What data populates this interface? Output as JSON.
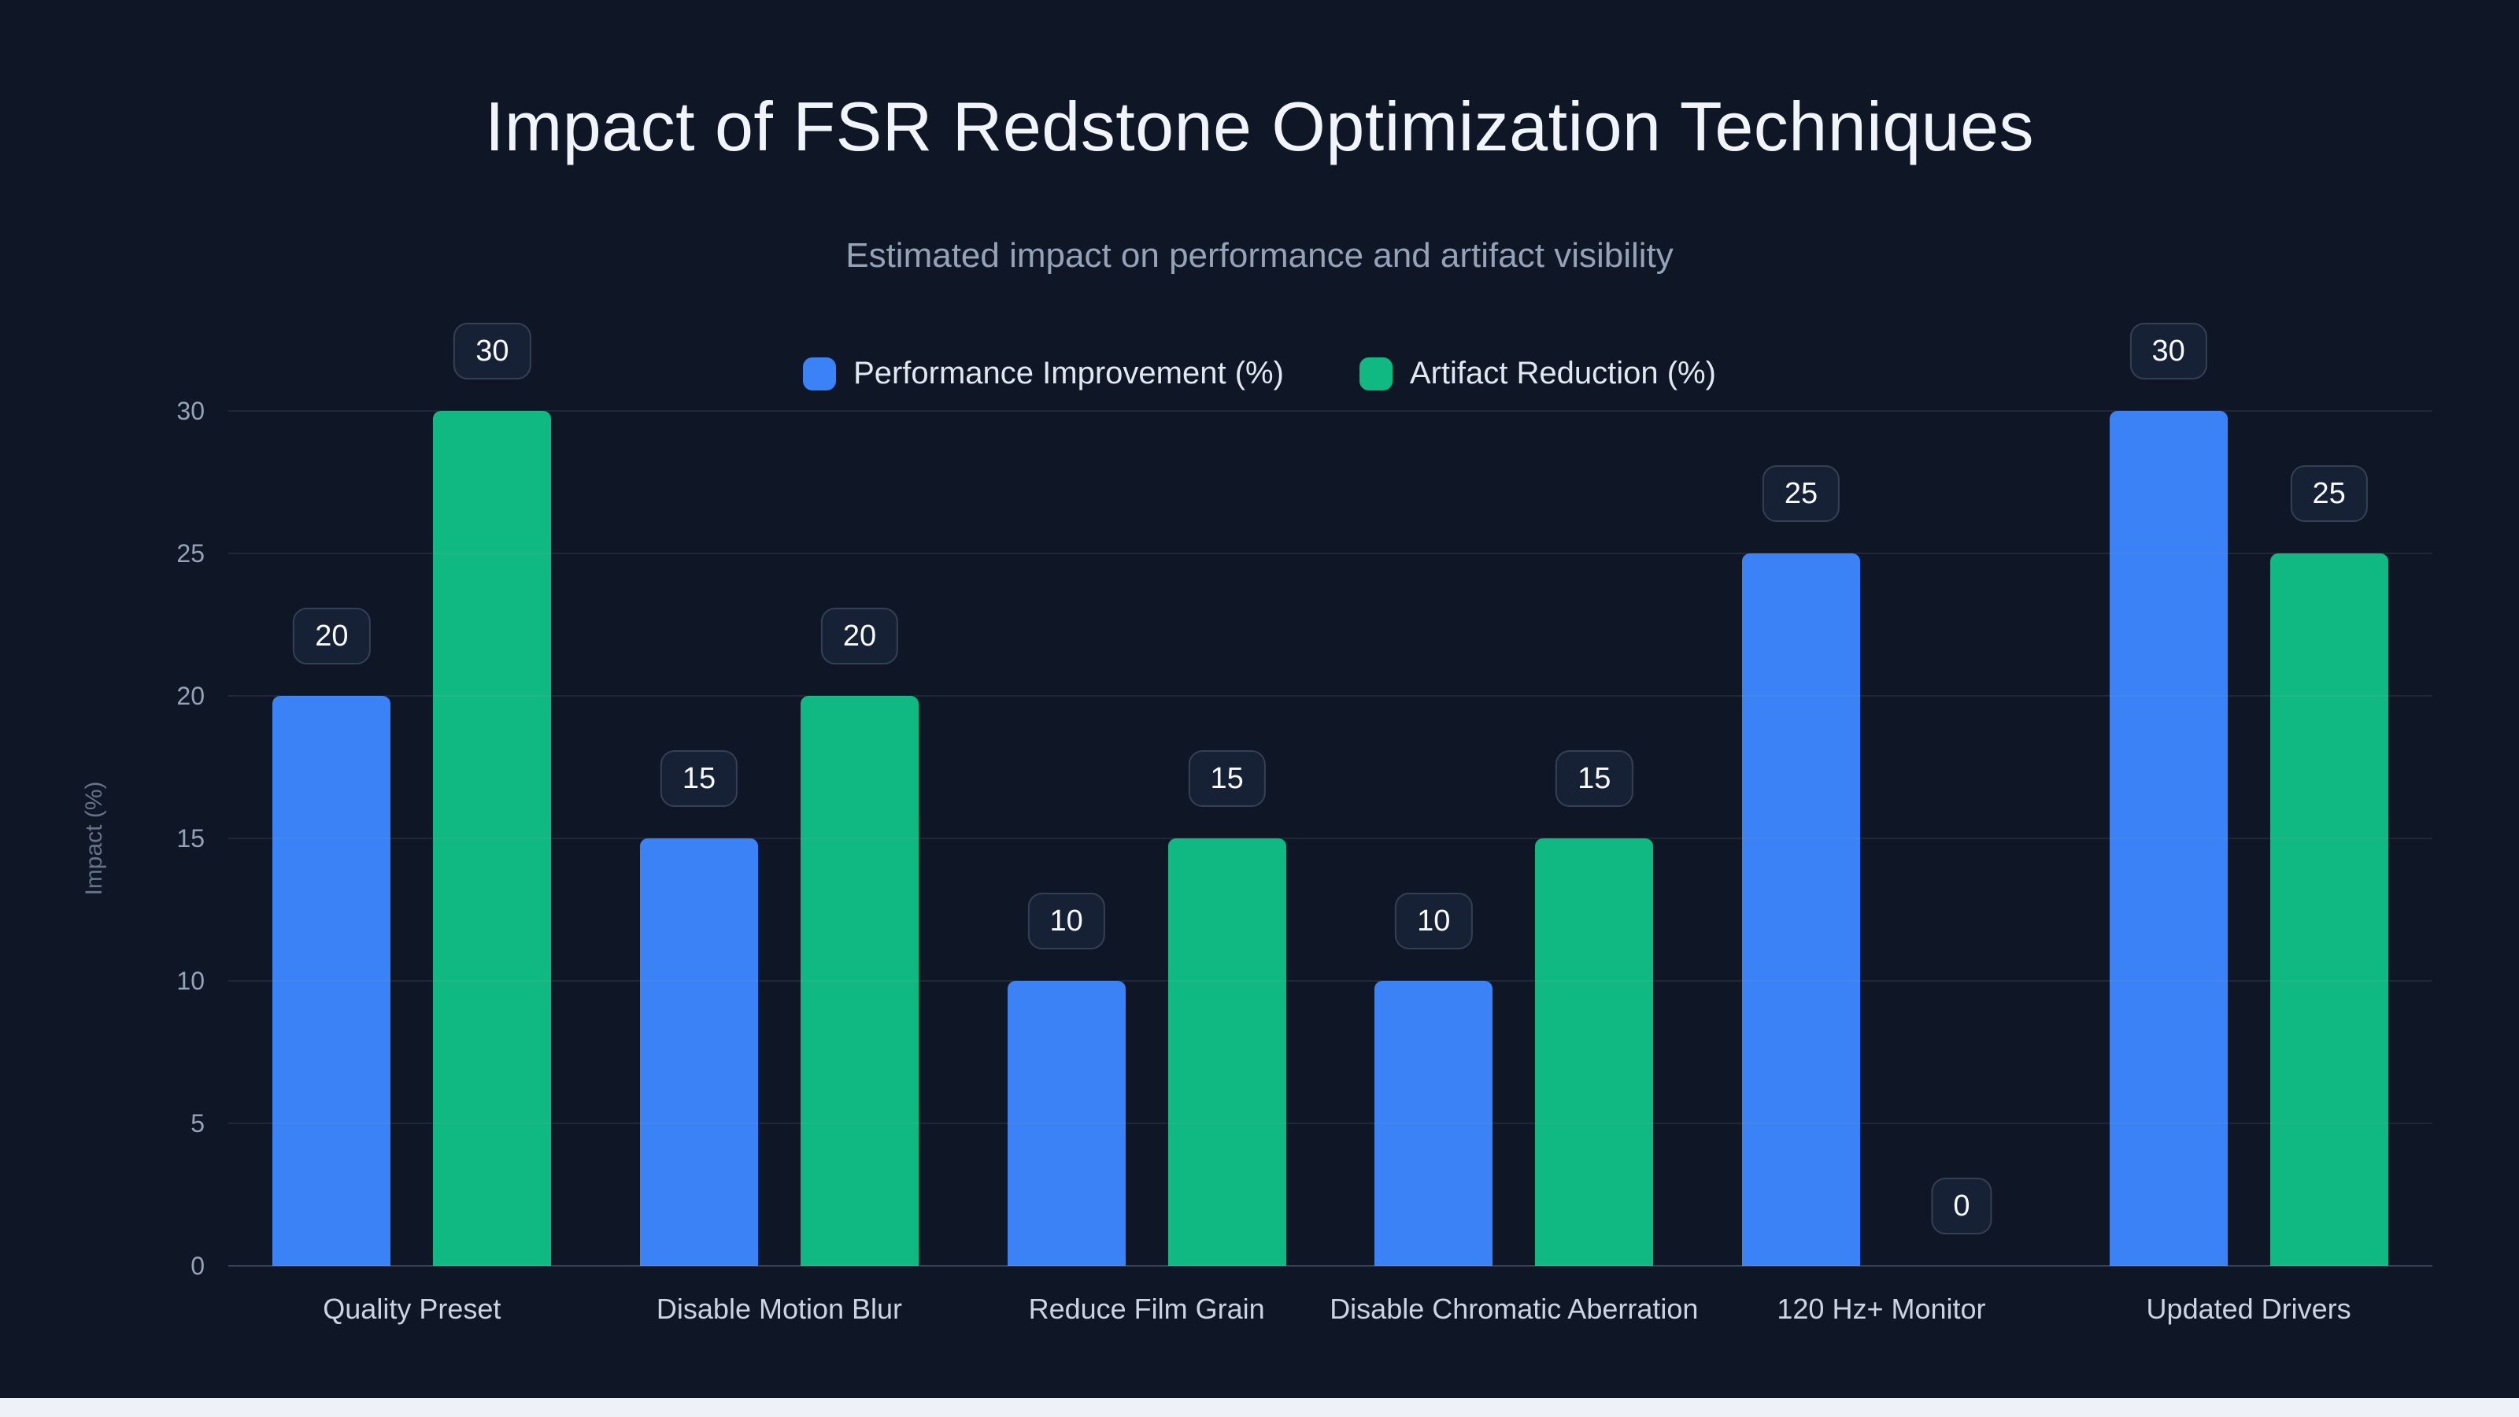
{
  "chart_data": {
    "type": "bar",
    "title": "Impact of FSR Redstone Optimization Techniques",
    "subtitle": "Estimated impact on performance and artifact visibility",
    "categories": [
      "Quality Preset",
      "Disable Motion Blur",
      "Reduce Film Grain",
      "Disable Chromatic Aberration",
      "120 Hz+ Monitor",
      "Updated Drivers"
    ],
    "series": [
      {
        "name": "Performance Improvement (%)",
        "color": "#3b82f6",
        "values": [
          20,
          15,
          10,
          10,
          25,
          30
        ]
      },
      {
        "name": "Artifact Reduction (%)",
        "color": "#10b981",
        "values": [
          30,
          20,
          15,
          15,
          0,
          25
        ]
      }
    ],
    "ylabel": "Impact (%)",
    "ylim": [
      0,
      30
    ],
    "yticks": [
      0,
      5,
      10,
      15,
      20,
      25,
      30
    ],
    "grid": true,
    "legend_position": "top-center",
    "value_labels": "badge above each bar",
    "background_color": "#0f1727"
  }
}
